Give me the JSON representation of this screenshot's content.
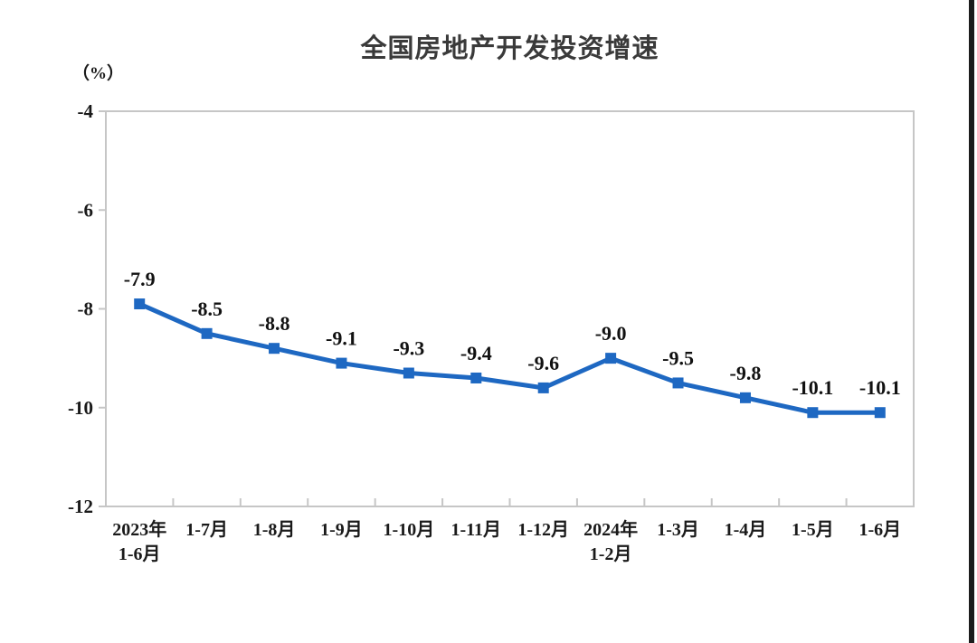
{
  "chart_data": {
    "type": "line",
    "title": "全国房地产开发投资增速",
    "unit_label": "（%）",
    "categories": [
      "2023年\n1-6月",
      "1-7月",
      "1-8月",
      "1-9月",
      "1-10月",
      "1-11月",
      "1-12月",
      "2024年\n1-2月",
      "1-3月",
      "1-4月",
      "1-5月",
      "1-6月"
    ],
    "values": [
      -7.9,
      -8.5,
      -8.8,
      -9.1,
      -9.3,
      -9.4,
      -9.6,
      -9.0,
      -9.5,
      -9.8,
      -10.1,
      -10.1
    ],
    "point_labels": [
      "-7.9",
      "-8.5",
      "-8.8",
      "-9.1",
      "-9.3",
      "-9.4",
      "-9.6",
      "-9.0",
      "-9.5",
      "-9.8",
      "-10.1",
      "-10.1"
    ],
    "y_ticks": [
      "-4",
      "-6",
      "-8",
      "-10",
      "-12"
    ],
    "y_tick_values": [
      -4,
      -6,
      -8,
      -10,
      -12
    ],
    "ylim": [
      -12,
      -4
    ],
    "grid": "off",
    "legend": "none",
    "line_color": "#1e68c2",
    "marker_color": "#1e68c2",
    "axis_color": "#c6c6c6",
    "text_color": "#1a1a1a"
  }
}
